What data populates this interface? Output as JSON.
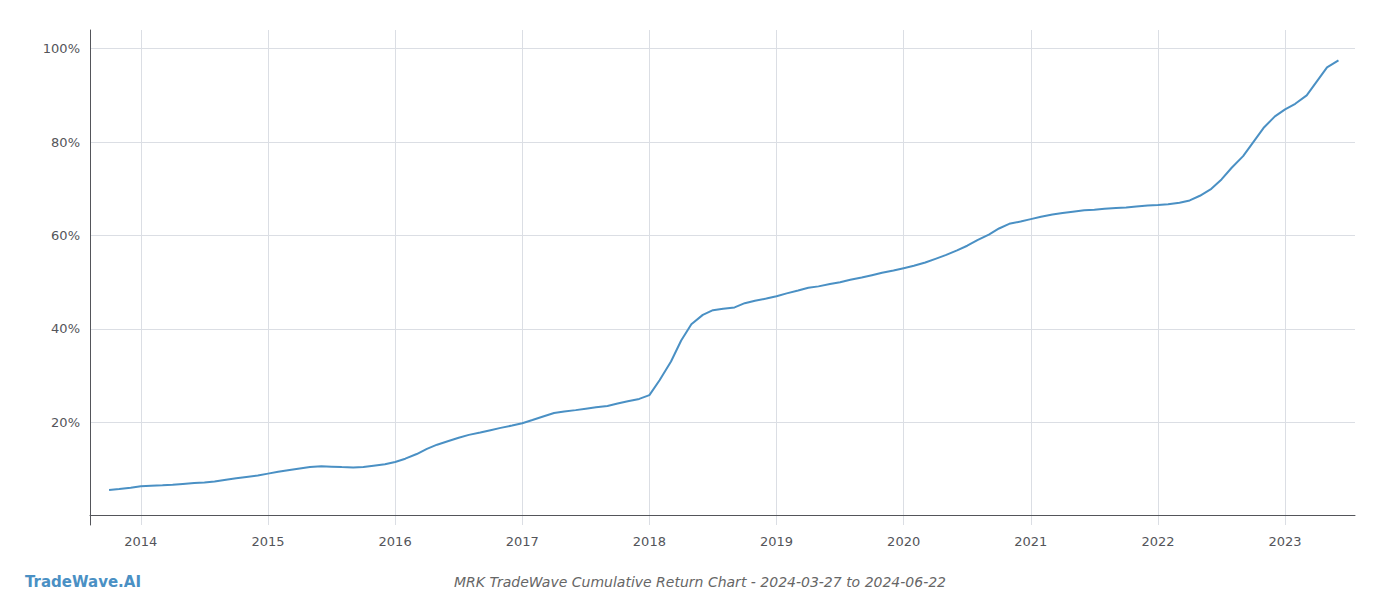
{
  "chart_data": {
    "type": "line",
    "title": "MRK TradeWave Cumulative Return Chart - 2024-03-27 to 2024-06-22",
    "annotations": [
      "TradeWave.AI"
    ],
    "color": "#4a90c4",
    "grid": true,
    "x": [
      2013.75,
      2013.83,
      2013.92,
      2014.0,
      2014.08,
      2014.17,
      2014.25,
      2014.33,
      2014.42,
      2014.5,
      2014.58,
      2014.67,
      2014.75,
      2014.83,
      2014.92,
      2015.0,
      2015.08,
      2015.17,
      2015.25,
      2015.33,
      2015.42,
      2015.5,
      2015.58,
      2015.67,
      2015.75,
      2015.83,
      2015.92,
      2016.0,
      2016.08,
      2016.17,
      2016.25,
      2016.33,
      2016.42,
      2016.5,
      2016.58,
      2016.67,
      2016.75,
      2016.83,
      2016.92,
      2017.0,
      2017.08,
      2017.17,
      2017.25,
      2017.33,
      2017.42,
      2017.5,
      2017.58,
      2017.67,
      2017.75,
      2017.83,
      2017.92,
      2018.0,
      2018.08,
      2018.17,
      2018.25,
      2018.33,
      2018.42,
      2018.5,
      2018.58,
      2018.67,
      2018.75,
      2018.83,
      2018.92,
      2019.0,
      2019.08,
      2019.17,
      2019.25,
      2019.33,
      2019.42,
      2019.5,
      2019.58,
      2019.67,
      2019.75,
      2019.83,
      2019.92,
      2020.0,
      2020.08,
      2020.17,
      2020.25,
      2020.33,
      2020.42,
      2020.5,
      2020.58,
      2020.67,
      2020.75,
      2020.83,
      2020.92,
      2021.0,
      2021.08,
      2021.17,
      2021.25,
      2021.33,
      2021.42,
      2021.5,
      2021.58,
      2021.67,
      2021.75,
      2021.83,
      2021.92,
      2022.0,
      2022.08,
      2022.17,
      2022.25,
      2022.33,
      2022.42,
      2022.5,
      2022.58,
      2022.67,
      2022.75,
      2022.83,
      2022.92,
      2023.0,
      2023.08,
      2023.17,
      2023.25,
      2023.33,
      2023.42
    ],
    "values": [
      0.055,
      0.057,
      0.06,
      0.063,
      0.064,
      0.065,
      0.066,
      0.068,
      0.07,
      0.071,
      0.073,
      0.077,
      0.08,
      0.083,
      0.086,
      0.09,
      0.094,
      0.098,
      0.101,
      0.104,
      0.106,
      0.105,
      0.104,
      0.103,
      0.104,
      0.107,
      0.11,
      0.115,
      0.122,
      0.132,
      0.143,
      0.152,
      0.16,
      0.167,
      0.173,
      0.178,
      0.183,
      0.188,
      0.193,
      0.198,
      0.205,
      0.213,
      0.22,
      0.223,
      0.226,
      0.229,
      0.232,
      0.235,
      0.24,
      0.245,
      0.25,
      0.258,
      0.29,
      0.33,
      0.375,
      0.41,
      0.43,
      0.44,
      0.443,
      0.446,
      0.455,
      0.46,
      0.465,
      0.47,
      0.476,
      0.482,
      0.488,
      0.491,
      0.496,
      0.5,
      0.505,
      0.51,
      0.515,
      0.52,
      0.525,
      0.53,
      0.535,
      0.542,
      0.55,
      0.558,
      0.568,
      0.578,
      0.59,
      0.602,
      0.615,
      0.625,
      0.63,
      0.635,
      0.64,
      0.645,
      0.648,
      0.651,
      0.654,
      0.655,
      0.657,
      0.659,
      0.66,
      0.662,
      0.664,
      0.665,
      0.667,
      0.67,
      0.675,
      0.685,
      0.7,
      0.72,
      0.745,
      0.77,
      0.8,
      0.83,
      0.855,
      0.87,
      0.882,
      0.9,
      0.93,
      0.96,
      0.975
    ],
    "xlim": [
      2013.6,
      2023.55
    ],
    "xticks": [
      2014,
      2015,
      2016,
      2017,
      2018,
      2019,
      2020,
      2021,
      2022,
      2023
    ],
    "ylim": [
      -0.02,
      1.04
    ],
    "yticks": [
      {
        "value": 0.2,
        "label": "20%"
      },
      {
        "value": 0.4,
        "label": "40%"
      },
      {
        "value": 0.6,
        "label": "60%"
      },
      {
        "value": 0.8,
        "label": "80%"
      },
      {
        "value": 1.0,
        "label": "100%"
      }
    ]
  }
}
